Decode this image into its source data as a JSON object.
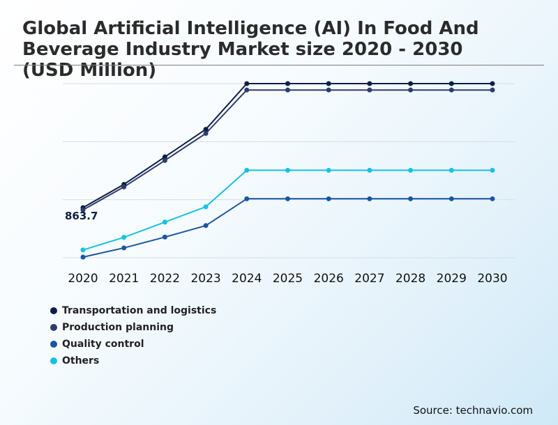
{
  "chart_data": {
    "type": "line",
    "title": "Global Artificial Intelligence (AI) In Food And Beverage Industry Market size 2020 - 2030 (USD Million)",
    "x": [
      "2020",
      "2021",
      "2022",
      "2023",
      "2024",
      "2025",
      "2026",
      "2027",
      "2028",
      "2029",
      "2030"
    ],
    "ylim": [
      0,
      3000
    ],
    "grid": true,
    "legend_position": "bottom-left",
    "annotation": {
      "text": "863.7",
      "series": "Transportation and logistics",
      "x": "2020"
    },
    "series": [
      {
        "name": "Transportation and logistics",
        "color": "#0d1f44",
        "values": [
          863.7,
          1265,
          1738,
          2213,
          3000,
          3000,
          3000,
          3000,
          3000,
          3000,
          3000
        ]
      },
      {
        "name": "Production planning",
        "color": "#2e3d6b",
        "values": [
          825,
          1220,
          1676,
          2142,
          2890,
          2890,
          2890,
          2890,
          2890,
          2890,
          2890
        ]
      },
      {
        "name": "Quality control",
        "color": "#1a56a0",
        "values": [
          12,
          170,
          357,
          555,
          1016,
          1016,
          1016,
          1016,
          1016,
          1016,
          1016
        ]
      },
      {
        "name": "Others",
        "color": "#17c1e0",
        "values": [
          135,
          352,
          615,
          878,
          1507,
          1507,
          1507,
          1507,
          1507,
          1507,
          1507
        ]
      }
    ]
  },
  "source": "Source: technavio.com"
}
